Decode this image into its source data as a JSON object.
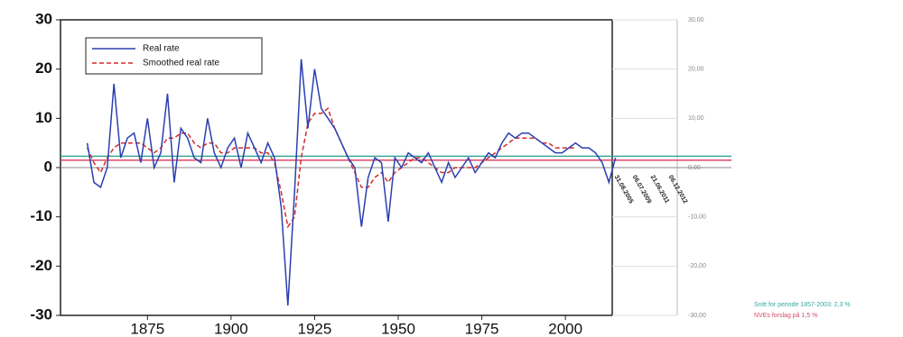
{
  "chart_data": {
    "type": "line",
    "x": [
      1857,
      1859,
      1861,
      1863,
      1865,
      1867,
      1869,
      1871,
      1873,
      1875,
      1877,
      1879,
      1881,
      1883,
      1885,
      1887,
      1889,
      1891,
      1893,
      1895,
      1897,
      1899,
      1901,
      1903,
      1905,
      1907,
      1909,
      1911,
      1913,
      1915,
      1917,
      1919,
      1921,
      1923,
      1925,
      1927,
      1929,
      1931,
      1933,
      1935,
      1937,
      1939,
      1941,
      1943,
      1945,
      1947,
      1949,
      1951,
      1953,
      1955,
      1957,
      1959,
      1961,
      1963,
      1965,
      1967,
      1969,
      1971,
      1973,
      1975,
      1977,
      1979,
      1981,
      1983,
      1985,
      1987,
      1989,
      1991,
      1993,
      1995,
      1997,
      1999,
      2001,
      2003,
      2005,
      2007,
      2009,
      2011,
      2013,
      2015
    ],
    "series": [
      {
        "name": "Real rate",
        "color": "#2a3fb0",
        "style": "solid",
        "values": [
          5,
          -3,
          -4,
          0,
          17,
          2,
          6,
          7,
          1,
          10,
          0,
          3,
          15,
          -3,
          8,
          6,
          2,
          1,
          10,
          3,
          0,
          4,
          6,
          0,
          7,
          4,
          1,
          5,
          2,
          -8,
          -28,
          -5,
          22,
          8,
          20,
          12,
          10,
          8,
          5,
          2,
          0,
          -12,
          -2,
          2,
          1,
          -11,
          2,
          0,
          3,
          2,
          1,
          3,
          0,
          -3,
          1,
          -2,
          0,
          2,
          -1,
          1,
          3,
          2,
          5,
          7,
          6,
          7,
          7,
          6,
          5,
          4,
          3,
          3,
          4,
          5,
          4,
          4,
          3,
          1,
          -3,
          2
        ]
      },
      {
        "name": "Smoothed real rate",
        "color": "#d42a2a",
        "style": "dashed",
        "values": [
          4,
          1,
          -1,
          2,
          4,
          5,
          5,
          5,
          5,
          4,
          3,
          4,
          6,
          6,
          7,
          7,
          5,
          4,
          5,
          5,
          3,
          3,
          4,
          4,
          4,
          4,
          3,
          3,
          1,
          -5,
          -12,
          -10,
          2,
          9,
          11,
          11,
          12,
          8,
          5,
          2,
          -1,
          -4,
          -4,
          -2,
          -1,
          -3,
          -1,
          0,
          1,
          2,
          2,
          1,
          0,
          -1,
          -1,
          0,
          0,
          0,
          0,
          1,
          2,
          3,
          4,
          5,
          6,
          6,
          6,
          6,
          5,
          5,
          4,
          4,
          4,
          4,
          null,
          null,
          null,
          null,
          null,
          null
        ]
      }
    ],
    "xlim": [
      1849,
      2014
    ],
    "xticks": [
      1875,
      1900,
      1925,
      1950,
      1975,
      2000
    ],
    "ylim": [
      -30,
      30
    ],
    "yticks": [
      -30,
      -20,
      -10,
      0,
      10,
      20,
      30
    ],
    "y2lim": [
      -30,
      30
    ],
    "y2ticks": [
      {
        "value": -30,
        "label": "-30,00"
      },
      {
        "value": -20,
        "label": "-20,00"
      },
      {
        "value": -10,
        "label": "-10,00"
      },
      {
        "value": 0,
        "label": "0,00"
      },
      {
        "value": 10,
        "label": "10,00"
      },
      {
        "value": 20,
        "label": "20,00"
      },
      {
        "value": 30,
        "label": "30,00"
      }
    ],
    "reference_lines": [
      {
        "value": 2.3,
        "color": "#3aa89a",
        "label": "Snitt for periode 1857-2003: 2,3 %"
      },
      {
        "value": 1.5,
        "color": "#d84a6a",
        "label": "NVEs forslag på 1,5 %"
      }
    ],
    "date_labels": [
      "31.08.2005",
      "06.07.2009",
      "21.06.2011",
      "06.12.2012"
    ]
  }
}
